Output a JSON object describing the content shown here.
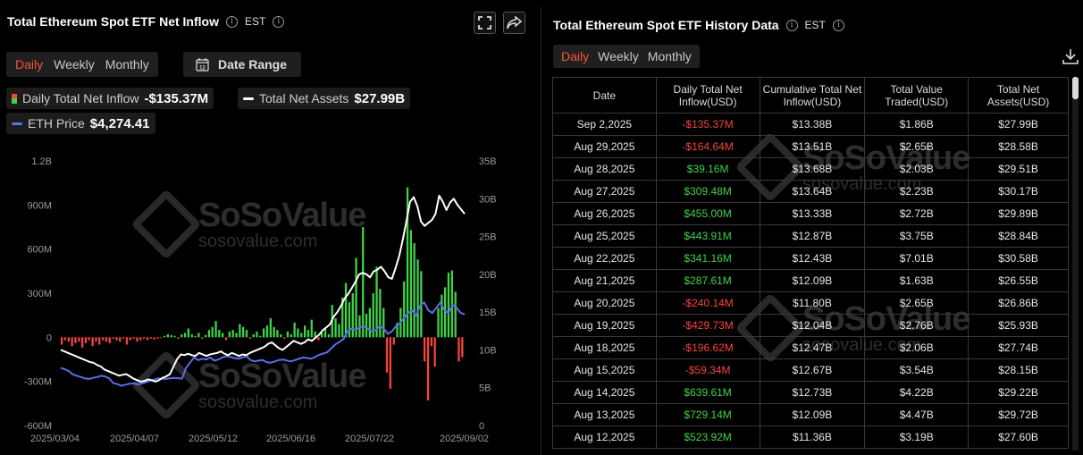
{
  "left": {
    "title": "Total Ethereum Spot ETF Net Inflow",
    "info_icon": "i",
    "timezone": "EST",
    "tabs": [
      "Daily",
      "Weekly",
      "Monthly"
    ],
    "active_tab": "Daily",
    "date_range_label": "Date Range",
    "date_range_icon_text": "12",
    "legend": {
      "inflow_label": "Daily Total Net Inflow",
      "inflow_value": "-$135.37M",
      "assets_label": "Total Net Assets",
      "assets_value": "$27.99B",
      "eth_label": "ETH Price",
      "eth_value": "$4,274.41"
    },
    "watermark": {
      "big": "SoSoValue",
      "small": "sosovalue.com"
    }
  },
  "colors": {
    "positive": "#3fd247",
    "negative": "#f5453b",
    "assets_line": "#ffffff",
    "eth_line": "#5b6ee8",
    "accent": "#f5563b"
  },
  "chart_data": {
    "type": "bar",
    "x_tick_labels": [
      "2025/03/04",
      "2025/04/07",
      "2025/05/12",
      "2025/06/16",
      "2025/07/22",
      "2025/09/02"
    ],
    "y_left_ticks": [
      "1.2B",
      "900M",
      "600M",
      "300M",
      "0",
      "-300M",
      "-600M"
    ],
    "y_right_ticks": [
      "35B",
      "30B",
      "25B",
      "20B",
      "15B",
      "10B",
      "5B",
      "0"
    ],
    "y_left_range": [
      -600,
      1200
    ],
    "y_right_range": [
      0,
      35
    ],
    "series": [
      {
        "name": "Daily Total Net Inflow",
        "unit": "M",
        "values": [
          -50,
          -20,
          -30,
          -60,
          -40,
          -30,
          -70,
          -40,
          -20,
          -60,
          -30,
          -50,
          -20,
          -30,
          -40,
          -10,
          -20,
          -30,
          -10,
          -50,
          -20,
          -10,
          -30,
          -20,
          -10,
          -20,
          -10,
          -15,
          -10,
          -5,
          10,
          20,
          15,
          10,
          -10,
          20,
          30,
          60,
          20,
          10,
          30,
          -10,
          15,
          50,
          70,
          110,
          50,
          30,
          -20,
          40,
          50,
          30,
          90,
          70,
          50,
          -10,
          20,
          40,
          10,
          60,
          80,
          130,
          70,
          50,
          20,
          -10,
          40,
          20,
          100,
          60,
          30,
          80,
          50,
          120,
          40,
          -20,
          30,
          60,
          20,
          220,
          130,
          90,
          270,
          370,
          240,
          300,
          540,
          150,
          750,
          160,
          200,
          300,
          480,
          330,
          200,
          -240,
          -350,
          -50,
          100,
          200,
          380,
          1020,
          730,
          640,
          530,
          450,
          -165,
          -430,
          -60,
          -200,
          200,
          290,
          340,
          440,
          455,
          310,
          -165,
          -135
        ]
      },
      {
        "name": "Total Net Assets",
        "unit": "B",
        "values": [
          10.0,
          9.8,
          9.6,
          9.4,
          9.2,
          9.0,
          8.8,
          8.6,
          8.4,
          8.3,
          8.0,
          7.8,
          7.4,
          7.2,
          7.0,
          6.8,
          6.6,
          6.7,
          6.8,
          6.5,
          6.2,
          6.0,
          5.8,
          5.9,
          6.1,
          6.0,
          5.8,
          6.0,
          6.3,
          6.5,
          6.8,
          7.8,
          8.8,
          9.4,
          9.3,
          9.5,
          9.3,
          9.2,
          9.6,
          9.4,
          9.2,
          9.4,
          9.5,
          9.6,
          9.8,
          9.5,
          9.3,
          9.6,
          9.4,
          9.2,
          9.4,
          9.3,
          9.6,
          9.8,
          10.0,
          10.2,
          10.4,
          10.8,
          11.0,
          10.6,
          10.2,
          10.0,
          10.4,
          10.8,
          11.2,
          11.0,
          10.8,
          11.0,
          11.4,
          11.2,
          11.6,
          12.0,
          12.6,
          13.0,
          13.4,
          14.4,
          15.0,
          15.8,
          16.8,
          17.4,
          18.2,
          19.0,
          20.0,
          20.2,
          20.0,
          19.6,
          20.4,
          20.6,
          21.0,
          20.4,
          19.6,
          19.4,
          20.8,
          22.4,
          24.6,
          27.0,
          29.6,
          30.2,
          29.0,
          27.0,
          26.4,
          26.8,
          27.2,
          28.0,
          30.4,
          29.6,
          28.5,
          29.5,
          30.0,
          29.2,
          28.6,
          28.0
        ]
      },
      {
        "name": "ETH Price",
        "unit": "USD",
        "values": [
          2200,
          2150,
          2080,
          1950,
          1900,
          1850,
          1800,
          1780,
          1820,
          1850,
          1900,
          1870,
          1800,
          1620,
          1580,
          1520,
          1560,
          1590,
          1610,
          1570,
          1600,
          1650,
          1700,
          1750,
          1800,
          1790,
          1780,
          1800,
          1820,
          1810,
          1790,
          2200,
          2400,
          2600,
          2500,
          2550,
          2520,
          2600,
          2480,
          2520,
          2600,
          2650,
          2620,
          2580,
          2550,
          2600,
          2650,
          2500,
          2450,
          2480,
          2500,
          2420,
          2400,
          2450,
          2500,
          2520,
          2480,
          2450,
          2500,
          2550,
          2600,
          2580,
          2550,
          2620,
          2700,
          2750,
          2800,
          2950,
          3100,
          3200,
          3300,
          3600,
          3700,
          3650,
          3750,
          3800,
          3700,
          3600,
          3650,
          3800,
          3700,
          3500,
          3600,
          3800,
          3900,
          4100,
          4300,
          4400,
          4200,
          4600,
          4700,
          4400,
          4300,
          4500,
          4700,
          4400,
          4300,
          4600,
          4500,
          4300,
          4250
        ]
      }
    ]
  },
  "right": {
    "title": "Total Ethereum Spot ETF History Data",
    "info_icon": "i",
    "timezone": "EST",
    "tabs": [
      "Daily",
      "Weekly",
      "Monthly"
    ],
    "active_tab": "Daily",
    "headers": [
      "Date",
      "Daily Total Net Inflow(USD)",
      "Cumulative Total Net Inflow(USD)",
      "Total Value Traded(USD)",
      "Total Net Assets(USD)"
    ],
    "rows": [
      [
        "Sep 2,2025",
        "-$135.37M",
        "$13.38B",
        "$1.86B",
        "$27.99B"
      ],
      [
        "Aug 29,2025",
        "-$164.64M",
        "$13.51B",
        "$2.65B",
        "$28.58B"
      ],
      [
        "Aug 28,2025",
        "$39.16M",
        "$13.68B",
        "$2.03B",
        "$29.51B"
      ],
      [
        "Aug 27,2025",
        "$309.48M",
        "$13.64B",
        "$2.23B",
        "$30.17B"
      ],
      [
        "Aug 26,2025",
        "$455.00M",
        "$13.33B",
        "$2.72B",
        "$29.89B"
      ],
      [
        "Aug 25,2025",
        "$443.91M",
        "$12.87B",
        "$3.75B",
        "$28.84B"
      ],
      [
        "Aug 22,2025",
        "$341.16M",
        "$12.43B",
        "$7.01B",
        "$30.58B"
      ],
      [
        "Aug 21,2025",
        "$287.61M",
        "$12.09B",
        "$1.63B",
        "$26.55B"
      ],
      [
        "Aug 20,2025",
        "-$240.14M",
        "$11.80B",
        "$2.65B",
        "$26.86B"
      ],
      [
        "Aug 19,2025",
        "-$429.73M",
        "$12.04B",
        "$2.76B",
        "$25.93B"
      ],
      [
        "Aug 18,2025",
        "-$196.62M",
        "$12.47B",
        "$2.06B",
        "$27.74B"
      ],
      [
        "Aug 15,2025",
        "-$59.34M",
        "$12.67B",
        "$3.54B",
        "$28.15B"
      ],
      [
        "Aug 14,2025",
        "$639.61M",
        "$12.73B",
        "$4.22B",
        "$29.22B"
      ],
      [
        "Aug 13,2025",
        "$729.14M",
        "$12.09B",
        "$4.47B",
        "$29.72B"
      ],
      [
        "Aug 12,2025",
        "$523.92M",
        "$11.36B",
        "$3.19B",
        "$27.60B"
      ]
    ]
  }
}
